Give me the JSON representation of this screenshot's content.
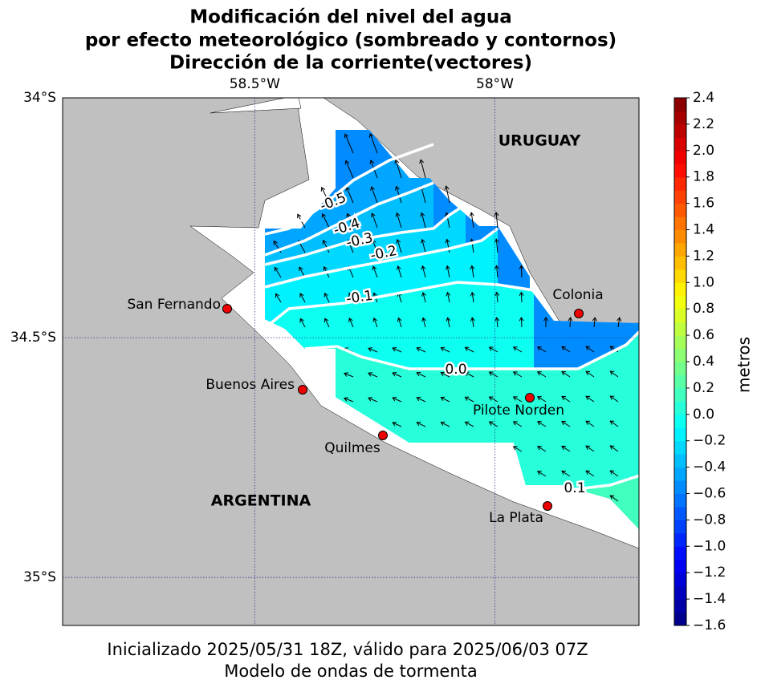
{
  "title": [
    "Modificación del nivel del agua",
    "por efecto meteorológico (sombreado y contornos)",
    "Dirección de la corriente(vectores)"
  ],
  "map": {
    "xlim": [
      -58.9,
      -57.7
    ],
    "ylim": [
      -35.1,
      -34
    ],
    "xticks": [
      {
        "value": -58.5,
        "label": "58.5°W"
      },
      {
        "value": -58,
        "label": "58°W"
      }
    ],
    "yticks": [
      {
        "value": -34,
        "label": "34°S"
      },
      {
        "value": -34.5,
        "label": "34.5°S"
      },
      {
        "value": -35,
        "label": "35°S"
      }
    ],
    "grid": true,
    "countries": [
      "URUGUAY",
      "ARGENTINA"
    ],
    "places": [
      "San Fernando",
      "Buenos Aires",
      "Quilmes",
      "Colonia",
      "Pilote Norden",
      "La Plata"
    ],
    "contours": {
      "levels": [
        -0.5,
        -0.4,
        -0.3,
        -0.2,
        -0.1,
        0,
        0.1
      ],
      "labels": [
        "-0.5",
        "-0.4",
        "-0.3",
        "-0.2",
        "-0.1",
        "0.0",
        "0.1"
      ]
    }
  },
  "colorbar": {
    "label": "metros",
    "colormap": "jet",
    "lim": [
      -1.6,
      2.4
    ],
    "ticks": [
      2.4,
      2.2,
      {
        "value": 2,
        "label": "2.0"
      },
      1.8,
      1.6,
      1.4,
      1.2,
      {
        "value": 1,
        "label": "1.0"
      },
      0.8,
      0.6,
      0.4,
      0.2,
      {
        "value": 0,
        "label": "0.0"
      },
      {
        "value": -0.2,
        "label": "−0.2"
      },
      {
        "value": -0.4,
        "label": "−0.4"
      },
      {
        "value": -0.6,
        "label": "−0.6"
      },
      {
        "value": -0.8,
        "label": "−0.8"
      },
      {
        "value": -1,
        "label": "−1.0"
      },
      {
        "value": -1.2,
        "label": "−1.2"
      },
      {
        "value": -1.4,
        "label": "−1.4"
      },
      {
        "value": -1.6,
        "label": "−1.6"
      }
    ]
  },
  "footer": [
    "Inicializado 2025/05/31 18Z, válido para 2025/06/03 07Z",
    "Modelo de ondas de tormenta"
  ]
}
